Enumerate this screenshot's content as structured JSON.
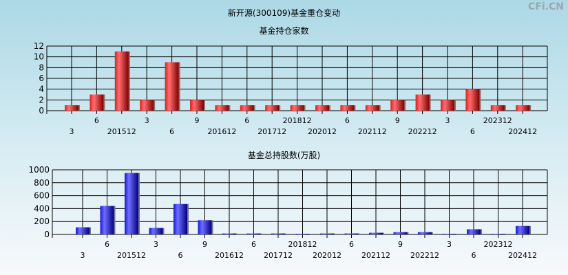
{
  "title": "新开源(300109)基金重仓变动",
  "watermark": "CFi.CN",
  "chart_data": [
    {
      "type": "bar",
      "title": "基金持仓家数",
      "categories": [
        "3",
        "6",
        "201512",
        "3",
        "6",
        "9",
        "201612",
        "6",
        "201712",
        "201812",
        "202012",
        "6",
        "202112",
        "9",
        "202212",
        "3",
        "6",
        "202312",
        "202412"
      ],
      "values": [
        1,
        3,
        11,
        2,
        9,
        2,
        1,
        1,
        1,
        1,
        1,
        1,
        1,
        2,
        3,
        2,
        4,
        1,
        1
      ],
      "ylim": [
        0,
        12
      ],
      "yticks": [
        0,
        2,
        4,
        6,
        8,
        10,
        12
      ],
      "grid": true,
      "color": "#e8202a"
    },
    {
      "type": "bar",
      "title": "基金总持股数(万股)",
      "categories": [
        "3",
        "6",
        "201512",
        "3",
        "6",
        "9",
        "201612",
        "6",
        "201712",
        "201812",
        "202012",
        "6",
        "202112",
        "9",
        "202212",
        "3",
        "6",
        "202312",
        "202412"
      ],
      "values": [
        110,
        440,
        950,
        100,
        470,
        220,
        15,
        15,
        15,
        8,
        15,
        15,
        25,
        35,
        35,
        5,
        80,
        5,
        130
      ],
      "ylim": [
        0,
        1000
      ],
      "yticks": [
        0,
        200,
        400,
        600,
        800,
        1000
      ],
      "grid": true,
      "color": "#2828e0"
    }
  ]
}
